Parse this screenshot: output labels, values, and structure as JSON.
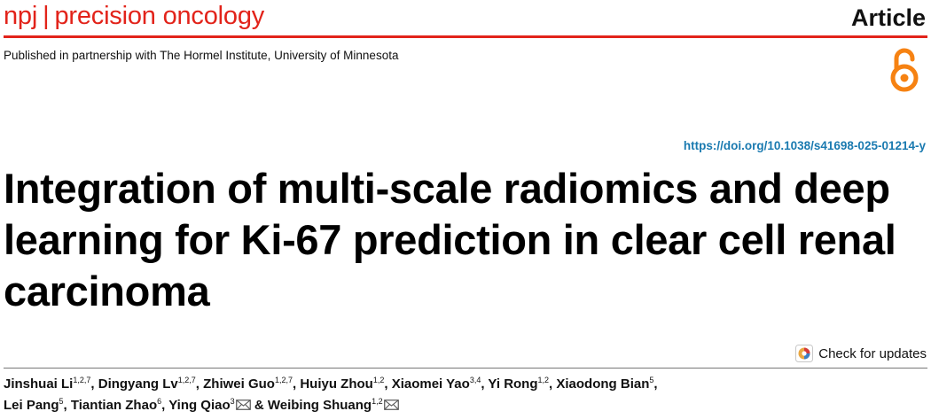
{
  "header": {
    "journal_prefix": "npj",
    "separator": "|",
    "journal_name": "precision oncology",
    "article_type": "Article",
    "partnership": "Published in partnership with The Hormel Institute, University of Minnesota",
    "open_access_icon": "open-access-lock-icon"
  },
  "doi": "https://doi.org/10.1038/s41698-025-01214-y",
  "title": "Integration of multi-scale radiomics and deep learning for Ki-67 prediction in clear cell renal carcinoma",
  "check_updates": {
    "label": "Check for updates",
    "icon": "check-for-updates-icon"
  },
  "authors": [
    {
      "name": "Jinshuai Li",
      "aff": "1,2,7"
    },
    {
      "name": "Dingyang Lv",
      "aff": "1,2,7"
    },
    {
      "name": "Zhiwei Guo",
      "aff": "1,2,7"
    },
    {
      "name": "Huiyu Zhou",
      "aff": "1,2"
    },
    {
      "name": "Xiaomei Yao",
      "aff": "3,4"
    },
    {
      "name": "Yi Rong",
      "aff": "1,2"
    },
    {
      "name": "Xiaodong Bian",
      "aff": "5"
    },
    {
      "name": "Lei Pang",
      "aff": "5"
    },
    {
      "name": "Tiantian Zhao",
      "aff": "6"
    },
    {
      "name": "Ying Qiao",
      "aff": "3"
    },
    {
      "name": "Weibing Shuang",
      "aff": "1,2"
    }
  ],
  "authors_text": {
    "separator": ", ",
    "and": " & "
  },
  "colors": {
    "brand_red": "#e2231a",
    "link_blue": "#1a7ab0",
    "open_access_orange": "#f68212"
  }
}
